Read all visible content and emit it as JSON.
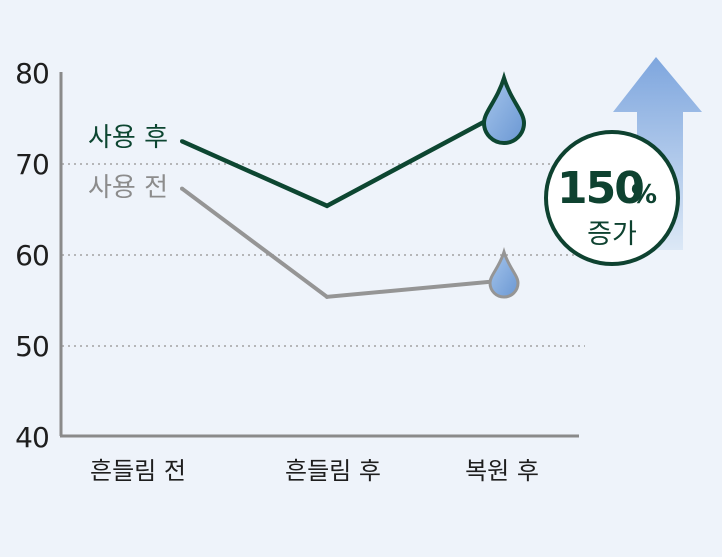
{
  "chart_data": {
    "type": "line",
    "categories": [
      "흔들림 전",
      "흔들림 후",
      "복원 후"
    ],
    "yticks": [
      "80",
      "70",
      "60",
      "50",
      "40"
    ],
    "ylim": [
      40,
      80
    ],
    "grid": "dotted at 50, 60, 70",
    "series": [
      {
        "name": "사용 후",
        "values": [
          72.5,
          65.4,
          75.8
        ],
        "color": "#0d4631"
      },
      {
        "name": "사용 전",
        "values": [
          67.3,
          55.4,
          57.2
        ],
        "color": "#959595"
      }
    ],
    "badge": {
      "number": "150",
      "percent": "%",
      "word": "증가"
    },
    "colors": {
      "background": "#eef3fa",
      "drop": "#7ea8dc",
      "arrow": "#8cb0e2",
      "axis": "#8a8a8a"
    }
  }
}
